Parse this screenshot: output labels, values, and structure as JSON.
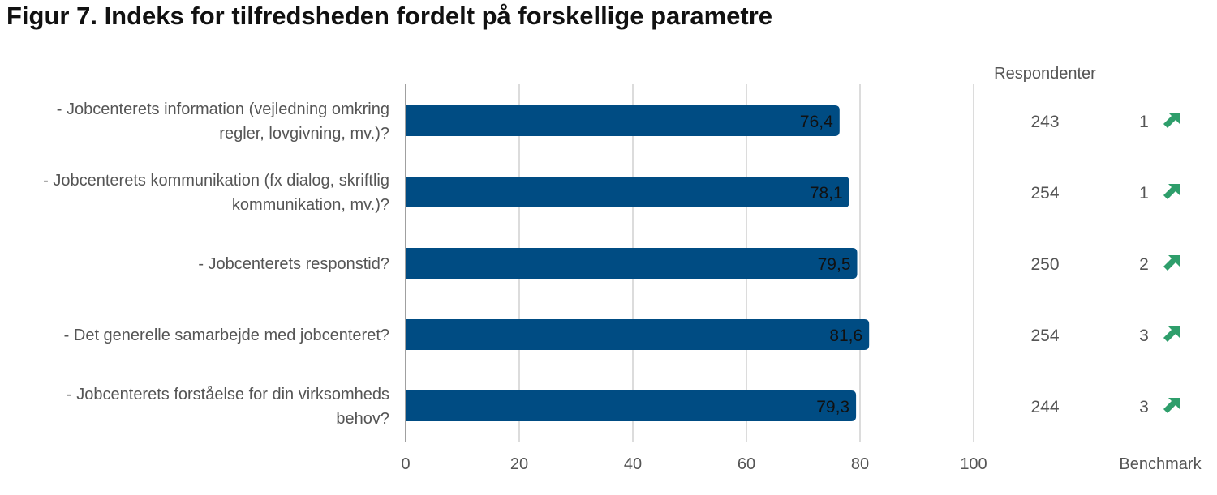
{
  "title": "Figur 7. Indeks for tilfredsheden fordelt på forskellige parametre",
  "respondents_header": "Respondenter",
  "benchmark_label": "Benchmark",
  "colors": {
    "bar": "#004C83",
    "arrow": "#2E9E6B",
    "grid": "#D0D0D0",
    "axis": "#A0A0A0"
  },
  "chart_data": {
    "type": "bar",
    "orientation": "horizontal",
    "categories": [
      [
        "- Jobcenterets information (vejledning omkring",
        "regler, lovgivning, mv.)?"
      ],
      [
        "- Jobcenterets kommunikation (fx dialog, skriftlig",
        "kommunikation, mv.)?"
      ],
      [
        "- Jobcenterets responstid?"
      ],
      [
        "- Det generelle samarbejde med jobcenteret?"
      ],
      [
        "- Jobcenterets forståelse for din virksomheds",
        "behov?"
      ]
    ],
    "values": [
      76.4,
      78.1,
      79.5,
      81.6,
      79.3
    ],
    "value_labels": [
      "76,4",
      "78,1",
      "79,5",
      "81,6",
      "79,3"
    ],
    "respondents": [
      "243",
      "254",
      "250",
      "254",
      "244"
    ],
    "benchmark": [
      "1",
      "1",
      "2",
      "3",
      "3"
    ],
    "benchmark_icon": "arrow-up-right-icon",
    "xlim": [
      0,
      100
    ],
    "xticks": [
      "0",
      "20",
      "40",
      "60",
      "80",
      "100"
    ],
    "grid": true
  }
}
